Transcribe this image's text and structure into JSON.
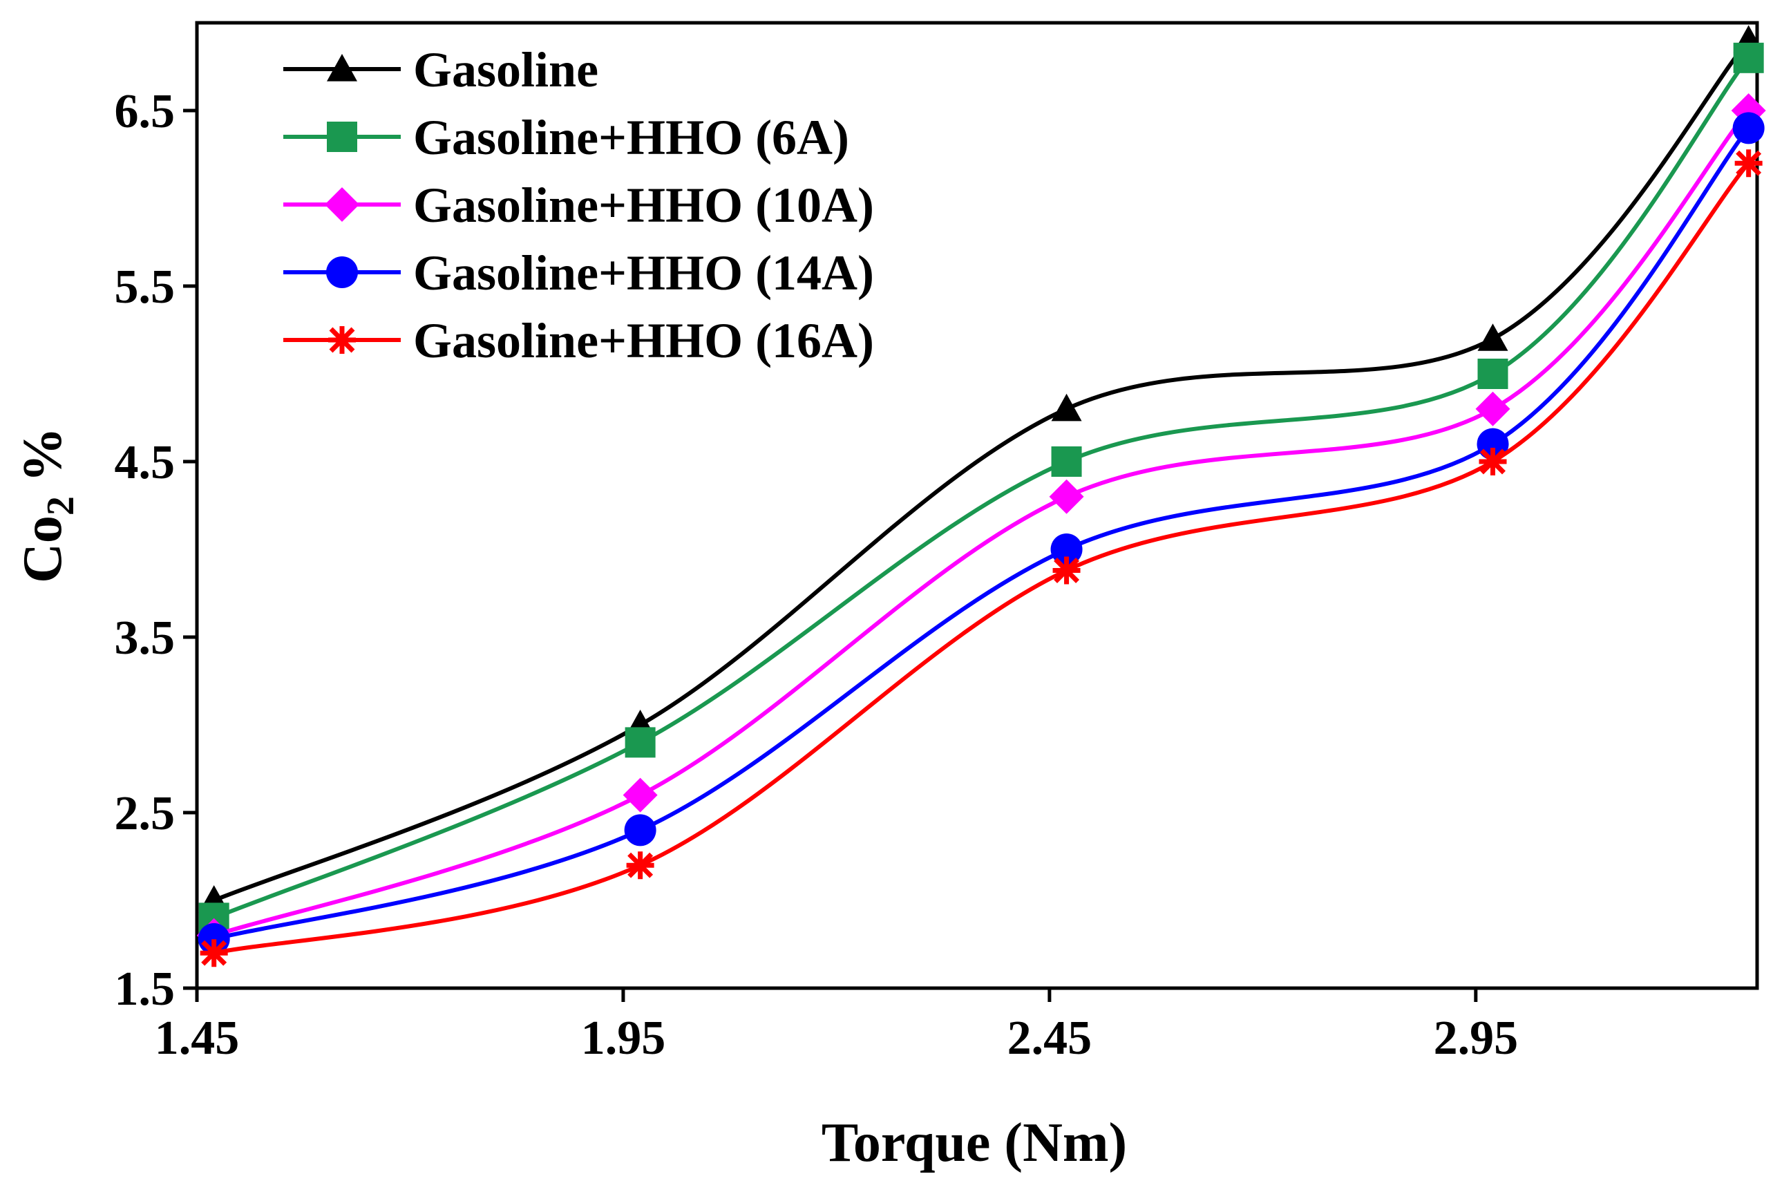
{
  "chart_data": {
    "type": "line",
    "smooth": true,
    "title": "",
    "xlabel": "Torque (Nm)",
    "ylabel_main": "Co",
    "ylabel_sub": "2",
    "ylabel_suffix": " %",
    "xlim": [
      1.45,
      3.28
    ],
    "ylim": [
      1.5,
      7.0
    ],
    "xticks": [
      1.45,
      1.95,
      2.45,
      2.95
    ],
    "xtick_labels": [
      "1.45",
      "1.95",
      "2.45",
      "2.95"
    ],
    "yticks": [
      1.5,
      2.5,
      3.5,
      4.5,
      5.5,
      6.5
    ],
    "ytick_labels": [
      "1.5",
      "2.5",
      "3.5",
      "4.5",
      "5.5",
      "6.5"
    ],
    "grid": false,
    "legend_position": "top-left",
    "x": [
      1.47,
      1.97,
      2.47,
      2.97,
      3.27
    ],
    "series": [
      {
        "name": "Gasoline",
        "color": "#000000",
        "marker": "triangle",
        "values": [
          2.0,
          3.0,
          4.8,
          5.2,
          6.9
        ]
      },
      {
        "name": "Gasoline+HHO (6A)",
        "color": "#1a9850",
        "marker": "square",
        "values": [
          1.9,
          2.9,
          4.5,
          5.0,
          6.8
        ]
      },
      {
        "name": "Gasoline+HHO (10A)",
        "color": "#ff00ff",
        "marker": "diamond",
        "values": [
          1.8,
          2.6,
          4.3,
          4.8,
          6.5
        ]
      },
      {
        "name": "Gasoline+HHO (14A)",
        "color": "#0000ff",
        "marker": "circle",
        "values": [
          1.78,
          2.4,
          4.0,
          4.6,
          6.4
        ]
      },
      {
        "name": "Gasoline+HHO (16A)",
        "color": "#ff0000",
        "marker": "star",
        "values": [
          1.7,
          2.2,
          3.88,
          4.5,
          6.2
        ]
      }
    ]
  }
}
